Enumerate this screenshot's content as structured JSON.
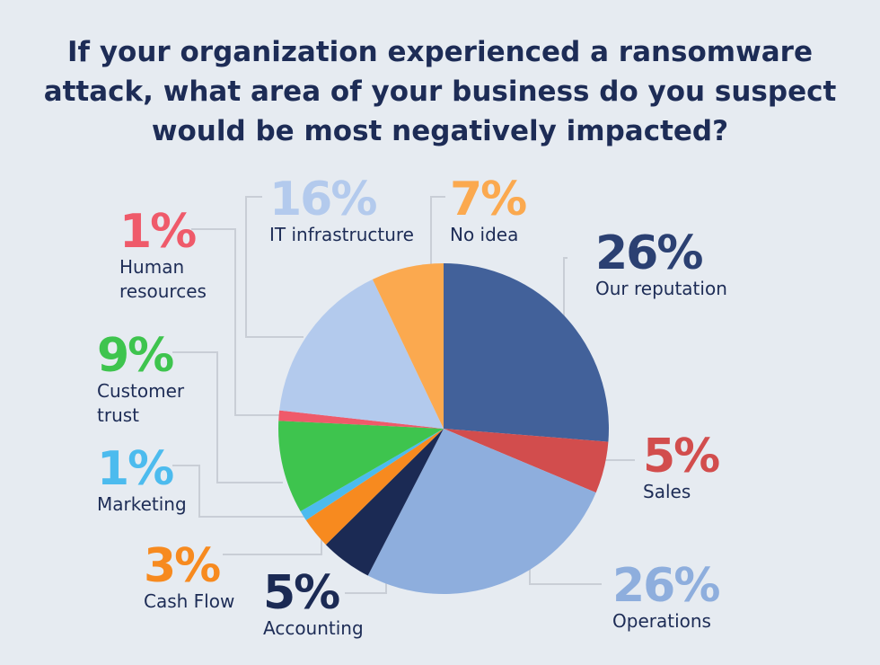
{
  "title": "If your organization experienced a ransomware attack, what area of your business do you suspect would be most negatively impacted?",
  "chart_data": {
    "type": "pie",
    "title": "If your organization experienced a ransomware attack, what area of your business do you suspect would be most negatively impacted?",
    "start": "12 o'clock, clockwise",
    "slices": [
      {
        "label": "Our reputation",
        "value": 26,
        "display": "26%",
        "color": "#42619a",
        "text_color": "#2b4072"
      },
      {
        "label": "Sales",
        "value": 5,
        "display": "5%",
        "color": "#d24d4d",
        "text_color": "#d24d4d"
      },
      {
        "label": "Operations",
        "value": 26,
        "display": "26%",
        "color": "#8eaedd",
        "text_color": "#8eaedd"
      },
      {
        "label": "Accounting",
        "value": 5,
        "display": "5%",
        "color": "#1b2a54",
        "text_color": "#1b2a54"
      },
      {
        "label": "Cash Flow",
        "value": 3,
        "display": "3%",
        "color": "#f78a1f",
        "text_color": "#f78a1f"
      },
      {
        "label": "Marketing",
        "value": 1,
        "display": "1%",
        "color": "#4cbbee",
        "text_color": "#4cbbee"
      },
      {
        "label": "Customer trust",
        "value": 9,
        "display": "9%",
        "color": "#3ec44e",
        "text_color": "#3ec44e"
      },
      {
        "label": "Human resources",
        "value": 1,
        "display": "1%",
        "color": "#ef5a6a",
        "text_color": "#ef5a6a"
      },
      {
        "label": "IT infrastructure",
        "value": 16,
        "display": "16%",
        "color": "#b3caed",
        "text_color": "#b3caed"
      },
      {
        "label": "No idea",
        "value": 7,
        "display": "7%",
        "color": "#fba94f",
        "text_color": "#fba94f"
      }
    ]
  }
}
